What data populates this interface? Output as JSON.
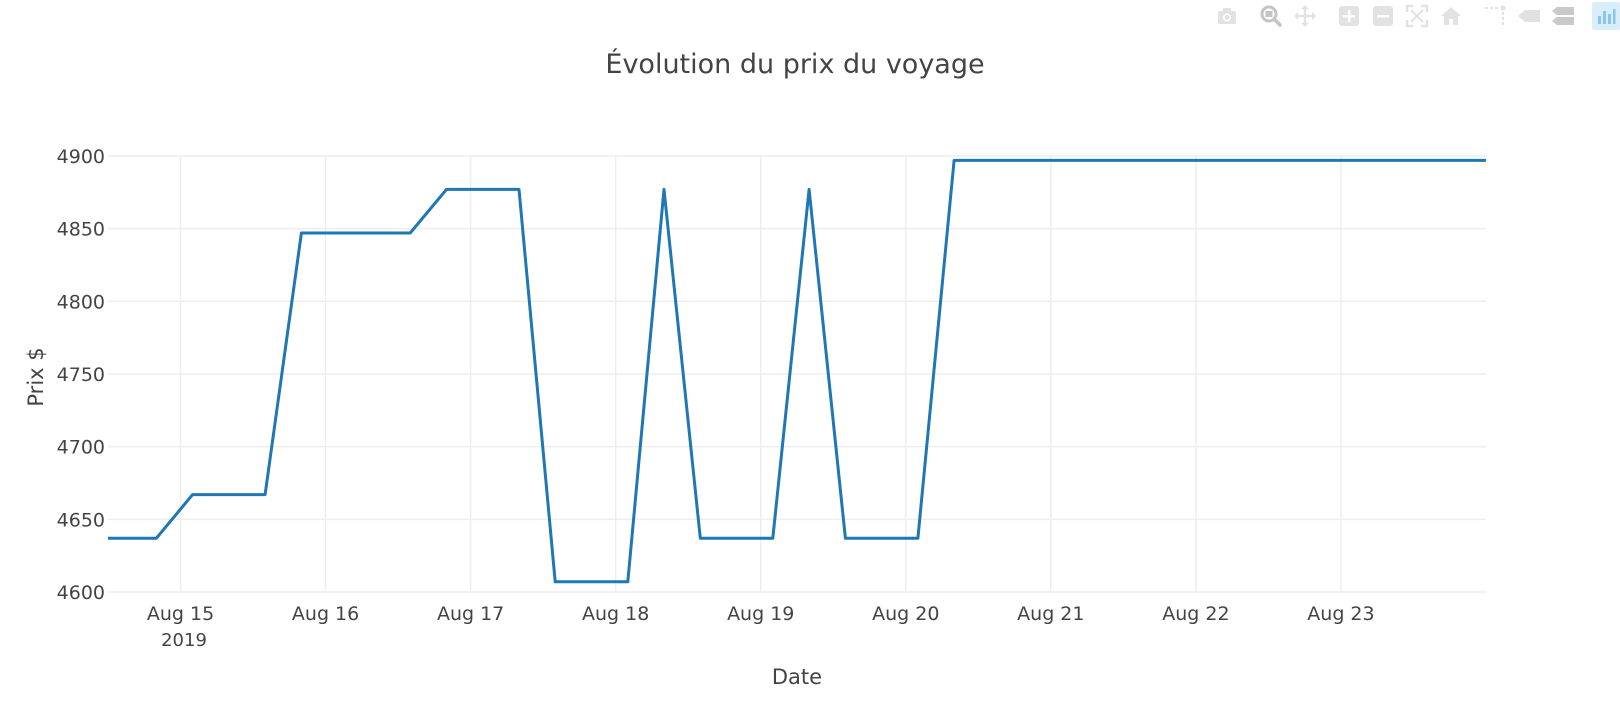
{
  "chart_data": {
    "type": "line",
    "title": "Évolution du prix du voyage",
    "xlabel": "Date",
    "ylabel": "Prix $",
    "ylim": [
      4600,
      4900
    ],
    "xlim": [
      "2019-08-14T12:00",
      "2019-08-24T00:00"
    ],
    "x_axis_type": "date",
    "year_label": "2019",
    "grid": true,
    "legend": "none",
    "line_color": "#1f77b4",
    "x_ticks": [
      {
        "date": "2019-08-15T00:00",
        "label": "Aug 15"
      },
      {
        "date": "2019-08-16T00:00",
        "label": "Aug 16"
      },
      {
        "date": "2019-08-17T00:00",
        "label": "Aug 17"
      },
      {
        "date": "2019-08-18T00:00",
        "label": "Aug 18"
      },
      {
        "date": "2019-08-19T00:00",
        "label": "Aug 19"
      },
      {
        "date": "2019-08-20T00:00",
        "label": "Aug 20"
      },
      {
        "date": "2019-08-21T00:00",
        "label": "Aug 21"
      },
      {
        "date": "2019-08-22T00:00",
        "label": "Aug 22"
      },
      {
        "date": "2019-08-23T00:00",
        "label": "Aug 23"
      }
    ],
    "y_ticks": [
      4600,
      4650,
      4700,
      4750,
      4800,
      4850,
      4900
    ],
    "series": [
      {
        "x": [
          "2019-08-14T12:00",
          "2019-08-14T20:00",
          "2019-08-15T02:00",
          "2019-08-15T14:00",
          "2019-08-15T20:00",
          "2019-08-16T14:00",
          "2019-08-16T20:00",
          "2019-08-17T08:00",
          "2019-08-17T14:00",
          "2019-08-18T02:00",
          "2019-08-18T08:00",
          "2019-08-18T14:00",
          "2019-08-19T02:00",
          "2019-08-19T08:00",
          "2019-08-19T14:00",
          "2019-08-20T02:00",
          "2019-08-20T08:00",
          "2019-08-21T00:00",
          "2019-08-22T00:00",
          "2019-08-23T00:00",
          "2019-08-24T00:00"
        ],
        "y": [
          4637,
          4637,
          4667,
          4667,
          4847,
          4847,
          4877,
          4877,
          4607,
          4607,
          4877,
          4637,
          4637,
          4877,
          4637,
          4637,
          4897,
          4897,
          4897,
          4897,
          4897
        ]
      }
    ]
  },
  "modebar": {
    "buttons": [
      {
        "icon": "camera-icon",
        "group": 1
      },
      {
        "icon": "zoom-icon",
        "group": 2
      },
      {
        "icon": "pan-icon",
        "group": 2
      },
      {
        "icon": "zoom-in-icon",
        "group": 3
      },
      {
        "icon": "zoom-out-icon",
        "group": 3
      },
      {
        "icon": "autoscale-icon",
        "group": 3
      },
      {
        "icon": "reset-axes-icon",
        "group": 3
      },
      {
        "icon": "spike-lines-icon",
        "group": 4
      },
      {
        "icon": "hover-closest-icon",
        "group": 4
      },
      {
        "icon": "hover-compare-icon",
        "group": 4
      },
      {
        "icon": "plotly-logo-icon",
        "group": 5
      }
    ]
  }
}
